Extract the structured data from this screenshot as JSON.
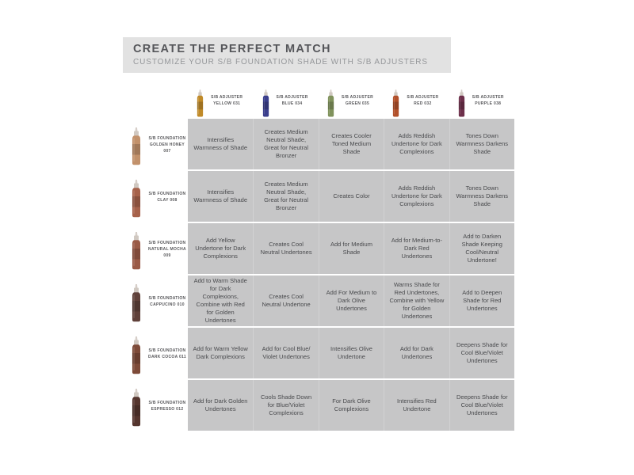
{
  "header": {
    "title": "CREATE THE PERFECT MATCH",
    "subtitle": "CUSTOMIZE YOUR S/B FOUNDATION SHADE WITH S/B ADJUSTERS"
  },
  "adjusters": [
    {
      "brand": "S/B ADJUSTER",
      "name": "YELLOW 031",
      "color": "#c08a28"
    },
    {
      "brand": "S/B ADJUSTER",
      "name": "BLUE 034",
      "color": "#3a3e8c"
    },
    {
      "brand": "S/B ADJUSTER",
      "name": "GREEN 035",
      "color": "#80925c"
    },
    {
      "brand": "S/B ADJUSTER",
      "name": "RED 032",
      "color": "#b2502a"
    },
    {
      "brand": "S/B ADJUSTER",
      "name": "PURPLE 038",
      "color": "#6d2f4a"
    }
  ],
  "foundations": [
    {
      "brand": "S/B FOUNDATION",
      "name": "GOLDEN HONEY 007",
      "color": "#c2916b"
    },
    {
      "brand": "S/B FOUNDATION",
      "name": "CLAY 008",
      "color": "#a6614a"
    },
    {
      "brand": "S/B FOUNDATION",
      "name": "NATURAL MOCHA 009",
      "color": "#9a5a46"
    },
    {
      "brand": "S/B FOUNDATION",
      "name": "CAPPUCINO 010",
      "color": "#60413a"
    },
    {
      "brand": "S/B FOUNDATION",
      "name": "DARK COCOA 011",
      "color": "#7d4a38"
    },
    {
      "brand": "S/B FOUNDATION",
      "name": "ESPRESSO 012",
      "color": "#55352e"
    }
  ],
  "chart_data": {
    "type": "table",
    "title": "CREATE THE PERFECT MATCH",
    "subtitle": "CUSTOMIZE YOUR S/B FOUNDATION SHADE WITH S/B ADJUSTERS",
    "column_headers": [
      "S/B ADJUSTER YELLOW 031",
      "S/B ADJUSTER BLUE 034",
      "S/B ADJUSTER GREEN 035",
      "S/B ADJUSTER RED 032",
      "S/B ADJUSTER PURPLE 038"
    ],
    "row_headers": [
      "S/B FOUNDATION GOLDEN HONEY 007",
      "S/B FOUNDATION CLAY 008",
      "S/B FOUNDATION NATURAL MOCHA 009",
      "S/B FOUNDATION CAPPUCINO 010",
      "S/B FOUNDATION DARK COCOA 011",
      "S/B FOUNDATION ESPRESSO 012"
    ],
    "cells": [
      [
        "Intensifies Warmness of Shade",
        "Creates Medium Neutral Shade, Great for Neutral Bronzer",
        "Creates Cooler Toned Medium Shade",
        "Adds Reddish Undertone for Dark Complexions",
        "Tones Down Warmness Darkens Shade"
      ],
      [
        "Intensifies Warmness of Shade",
        "Creates Medium Neutral Shade, Great for Neutral Bronzer",
        "Creates Color",
        "Adds Reddish Undertone for Dark Complexions",
        "Tones Down Warmness Darkens Shade"
      ],
      [
        "Add Yellow Undertone for Dark Complexions",
        "Creates Cool Neutral Undertones",
        "Add for Medium Shade",
        "Add for Medium-to-Dark Red Undertones",
        "Add to Darken Shade Keeping Cool/Neutral Undertone!"
      ],
      [
        "Add to Warm Shade for Dark Complexions, Combine with Red for Golden Undertones",
        "Creates Cool Neutral Undertone",
        "Add For Medium to Dark Olive Undertones",
        "Warms Shade for Red Undertones, Combine with Yellow for Golden Undertones",
        "Add to Deepen Shade for Red Undertones"
      ],
      [
        "Add for Warm Yellow Dark Complexions",
        "Add for Cool Blue/ Violet Undertones",
        "Intensifies Olive Undertone",
        "Add for Dark Undertones",
        "Deepens Shade for Cool Blue/Violet Undertones"
      ],
      [
        "Add for Dark Golden Undertones",
        "Cools Shade Down for Blue/Violet Complexions",
        "For Dark Olive Complexions",
        "Intensifies Red Undertone",
        "Deepens Shade for Cool Blue/Violet Undertones"
      ]
    ]
  }
}
